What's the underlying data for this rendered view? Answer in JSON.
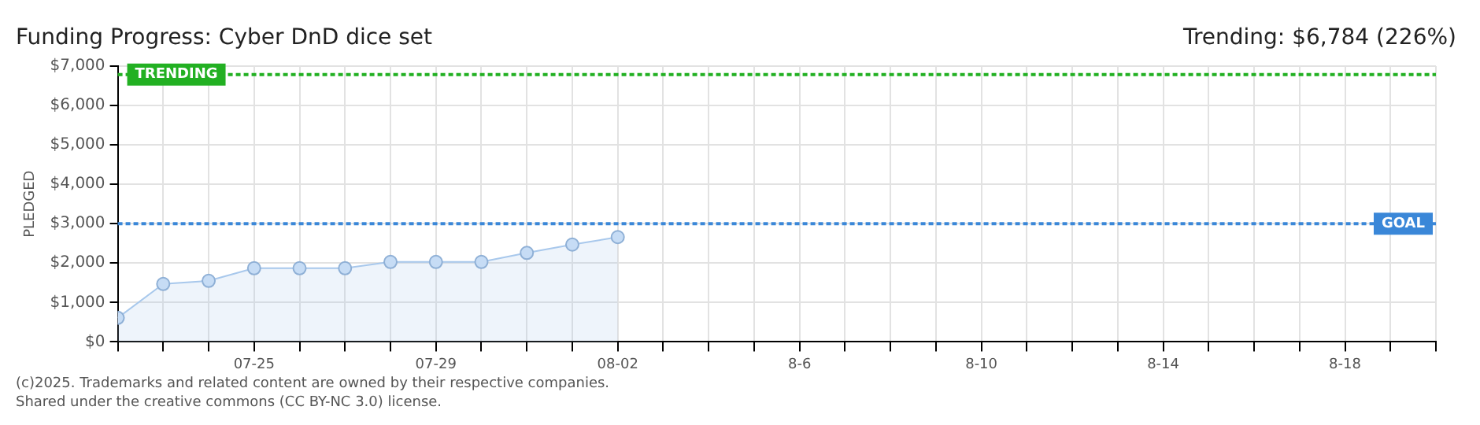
{
  "chart_data": {
    "type": "area",
    "title": "Funding Progress: Cyber DnD dice set",
    "subtitle": "Trending: $6,784 (226%)",
    "ylabel": "PLEDGED",
    "x": [
      "--07-22",
      "--07-23",
      "--07-24",
      "--07-25",
      "--07-26",
      "--07-27",
      "--07-28",
      "--07-29",
      "--07-30",
      "--07-31",
      "--08-01",
      "--08-02"
    ],
    "series": [
      {
        "color": "#a8c8ec",
        "values": [
          610,
          1470,
          1550,
          1870,
          1870,
          1870,
          2030,
          2030,
          2030,
          2260,
          2470,
          2660
        ]
      }
    ],
    "xlim": [
      "--07-22",
      "--08-20"
    ],
    "xticks": [
      {
        "value": "--07-22",
        "label": null
      },
      {
        "value": "--07-23",
        "label": null
      },
      {
        "value": "--07-24",
        "label": null
      },
      {
        "value": "--07-25",
        "label": "07-25"
      },
      {
        "value": "--07-26",
        "label": null
      },
      {
        "value": "--07-27",
        "label": null
      },
      {
        "value": "--07-28",
        "label": null
      },
      {
        "value": "--07-29",
        "label": "07-29"
      },
      {
        "value": "--07-30",
        "label": null
      },
      {
        "value": "--07-31",
        "label": null
      },
      {
        "value": "--08-01",
        "label": null
      },
      {
        "value": "--08-02",
        "label": "08-02"
      },
      {
        "value": "--08-03",
        "label": null
      },
      {
        "value": "--08-04",
        "label": null
      },
      {
        "value": "--08-05",
        "label": null
      },
      {
        "value": "--08-06",
        "label": "8-6"
      },
      {
        "value": "--08-07",
        "label": null
      },
      {
        "value": "--08-08",
        "label": null
      },
      {
        "value": "--08-09",
        "label": null
      },
      {
        "value": "--08-10",
        "label": "8-10"
      },
      {
        "value": "--08-11",
        "label": null
      },
      {
        "value": "--08-12",
        "label": null
      },
      {
        "value": "--08-13",
        "label": null
      },
      {
        "value": "--08-14",
        "label": "8-14"
      },
      {
        "value": "--08-15",
        "label": null
      },
      {
        "value": "--08-16",
        "label": null
      },
      {
        "value": "--08-17",
        "label": null
      },
      {
        "value": "--08-18",
        "label": "8-18"
      },
      {
        "value": "--08-19",
        "label": null
      },
      {
        "value": "--08-20",
        "label": null
      }
    ],
    "ylim": [
      0,
      7000
    ],
    "yticks": [
      {
        "value": 0,
        "label": "$0"
      },
      {
        "value": 1000,
        "label": "$1,000"
      },
      {
        "value": 2000,
        "label": "$2,000"
      },
      {
        "value": 3000,
        "label": "$3,000"
      },
      {
        "value": 4000,
        "label": "$4,000"
      },
      {
        "value": 5000,
        "label": "$5,000"
      },
      {
        "value": 6000,
        "label": "$6,000"
      },
      {
        "value": 7000,
        "label": "$7,000"
      }
    ],
    "ref_lines": [
      {
        "axis": "y",
        "value": 6784,
        "label": "TRENDING",
        "color": "#22b022",
        "line_style": "dotted"
      },
      {
        "axis": "y",
        "value": 3000,
        "label": "GOAL",
        "color": "#3a87d8",
        "line_style": "dotted"
      }
    ],
    "grid": true,
    "marker": "circle",
    "legend": false,
    "annotations": [
      "(c)2025. Trademarks and related content are owned by their respective companies.",
      "Shared under the creative commons (CC BY-NC 3.0) license."
    ]
  }
}
